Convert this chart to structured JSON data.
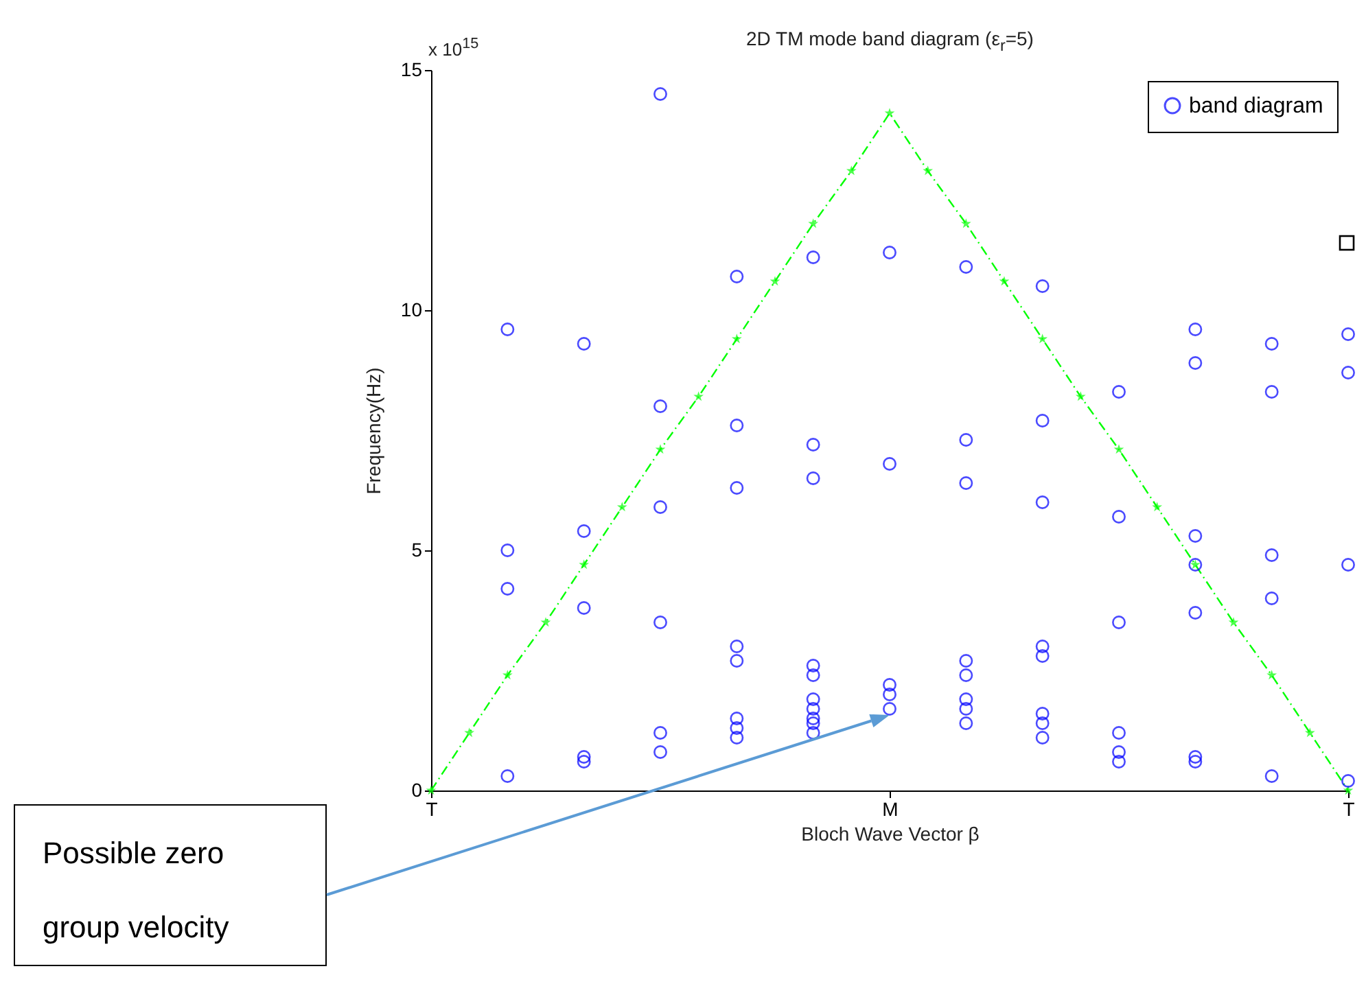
{
  "chart_data": {
    "type": "scatter",
    "title": "2D TM mode band diagram (ε$_{r}$=5)",
    "xlabel": "Bloch Wave Vector β",
    "ylabel": "Frequency(Hz)",
    "categories": [
      "T",
      null,
      null,
      null,
      null,
      null,
      null,
      null,
      null,
      null,
      null,
      null,
      "M",
      null,
      null,
      null,
      null,
      null,
      null,
      null,
      null,
      null,
      null,
      null,
      "T"
    ],
    "ylim": [
      0,
      15
    ],
    "yticks": [
      0,
      5,
      10,
      15
    ],
    "legend": "top right",
    "annotations": [
      "x 10$^{15}$",
      "Possible zero group velocity"
    ],
    "series": [
      {
        "name": "band diagram",
        "marker": "circle",
        "color": "#0000ff",
        "values": [
          null,
          null,
          0.3,
          null,
          0.6,
          null,
          0.8,
          null,
          1.1,
          null,
          1.2,
          null,
          1.7,
          null,
          1.4,
          null,
          1.1,
          null,
          0.6,
          null,
          0.6,
          null,
          0.3,
          null,
          0.2
        ]
      },
      {
        "marker": "circle",
        "color": "#0000ff",
        "values": [
          null,
          null,
          4.2,
          null,
          0.7,
          null,
          1.2,
          null,
          1.3,
          null,
          1.4,
          null,
          2.0,
          null,
          1.7,
          null,
          1.4,
          null,
          0.8,
          null,
          0.7,
          null,
          4.0,
          null,
          4.7
        ]
      },
      {
        "marker": "circle",
        "color": "#0000ff",
        "values": [
          null,
          null,
          5.0,
          null,
          3.8,
          null,
          3.5,
          null,
          1.5,
          null,
          1.5,
          null,
          2.2,
          null,
          1.9,
          null,
          1.6,
          null,
          1.2,
          null,
          3.7,
          null,
          4.9,
          null,
          8.7
        ]
      },
      {
        "marker": "circle",
        "color": "#0000ff",
        "values": [
          null,
          null,
          9.6,
          null,
          5.4,
          null,
          5.9,
          null,
          2.7,
          null,
          1.7,
          null,
          6.8,
          null,
          2.4,
          null,
          2.8,
          null,
          3.5,
          null,
          4.7,
          null,
          8.3,
          null,
          9.5
        ]
      },
      {
        "marker": "circle",
        "color": "#0000ff",
        "values": [
          null,
          null,
          null,
          null,
          9.3,
          null,
          8.0,
          null,
          3.0,
          null,
          1.9,
          null,
          11.2,
          null,
          2.7,
          null,
          3.0,
          null,
          5.7,
          null,
          5.3,
          null,
          9.3,
          null,
          null
        ]
      },
      {
        "marker": "circle",
        "color": "#0000ff",
        "values": [
          null,
          null,
          null,
          null,
          null,
          null,
          14.5,
          null,
          6.3,
          null,
          2.4,
          null,
          null,
          null,
          6.4,
          null,
          6.0,
          null,
          8.3,
          null,
          8.9,
          null,
          null,
          null,
          null
        ]
      },
      {
        "marker": "circle",
        "color": "#0000ff",
        "values": [
          null,
          null,
          null,
          null,
          null,
          null,
          null,
          null,
          7.6,
          null,
          2.6,
          null,
          null,
          null,
          7.3,
          null,
          7.7,
          null,
          null,
          null,
          9.6,
          null,
          null,
          null,
          null
        ]
      },
      {
        "marker": "circle",
        "color": "#0000ff",
        "values": [
          null,
          null,
          null,
          null,
          null,
          null,
          null,
          null,
          10.7,
          null,
          6.5,
          null,
          null,
          null,
          10.9,
          null,
          10.5,
          null,
          null,
          null,
          null,
          null,
          null,
          null,
          null
        ]
      },
      {
        "marker": "circle",
        "color": "#0000ff",
        "values": [
          null,
          null,
          null,
          null,
          null,
          null,
          null,
          null,
          null,
          null,
          7.2,
          null,
          null,
          null,
          null,
          null,
          null,
          null,
          null,
          null,
          null,
          null,
          null,
          null,
          null
        ]
      },
      {
        "marker": "circle",
        "color": "#0000ff",
        "values": [
          null,
          null,
          null,
          null,
          null,
          null,
          null,
          null,
          null,
          null,
          11.1,
          null,
          null,
          null,
          null,
          null,
          null,
          null,
          null,
          null,
          null,
          null,
          null,
          null,
          null
        ]
      },
      {
        "type": "line",
        "marker": "star",
        "line_style": "dashed",
        "color": "#00ff00",
        "values": [
          0,
          1.2,
          2.4,
          3.5,
          4.7,
          5.9,
          7.1,
          8.2,
          9.4,
          10.6,
          11.8,
          12.9,
          14.1,
          12.9,
          11.8,
          10.6,
          9.4,
          8.2,
          7.1,
          5.9,
          4.7,
          3.5,
          2.4,
          1.2,
          0
        ]
      }
    ]
  }
}
